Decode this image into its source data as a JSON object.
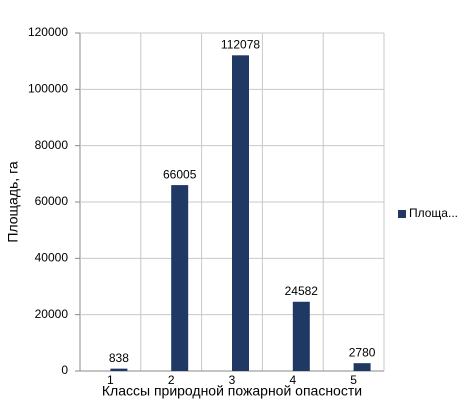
{
  "chart_data": {
    "type": "bar",
    "xlabel": "Классы природной пожарной опасности",
    "ylabel": "Площадь, га",
    "categories": [
      "1",
      "2",
      "3",
      "4",
      "5"
    ],
    "series": [
      {
        "name": "Площа...",
        "color": "#1f3864",
        "values": [
          838,
          66005,
          112078,
          24582,
          2780
        ]
      }
    ],
    "ylim": [
      0,
      120000
    ],
    "yticks": [
      0,
      20000,
      40000,
      60000,
      80000,
      100000,
      120000
    ],
    "grid": true,
    "legend": "right"
  }
}
